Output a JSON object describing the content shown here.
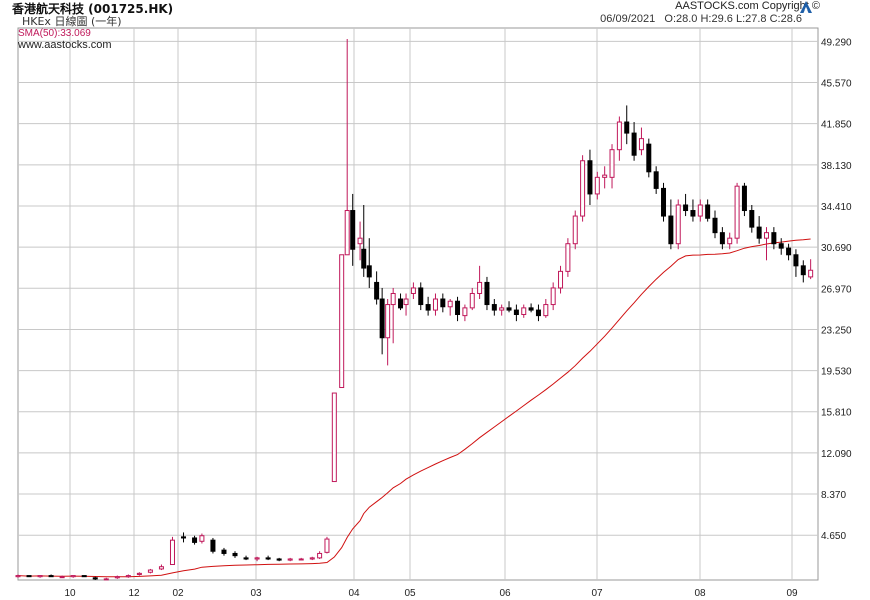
{
  "header": {
    "title": "香港航天科技 (001725.HK)",
    "subtitle": "HKEx  日線圖 (一年)",
    "copyright": "AASTOCKS.com Copyright ©",
    "date": "06/09/2021",
    "ohlc_text": "O:28.0  H:29.6  L:27.8  C:28.6"
  },
  "legend": {
    "sma_label": "SMA(50):33.069",
    "website": "www.aastocks.com"
  },
  "colors": {
    "up": "#c0185a",
    "down": "#000000",
    "sma": "#d01010",
    "grid": "#c8c8c8",
    "tick": "#222222"
  },
  "chart_data": {
    "type": "candlestick",
    "title": "香港航天科技 (001725.HK)",
    "y_ticks": [
      "49.290",
      "45.570",
      "41.850",
      "38.130",
      "34.410",
      "30.690",
      "26.970",
      "23.250",
      "19.530",
      "15.810",
      "12.090",
      "8.370",
      "4.650"
    ],
    "x_ticks": [
      "10",
      "12",
      "02",
      "03",
      "04",
      "05",
      "06",
      "07",
      "08",
      "09"
    ],
    "ylim": [
      0,
      50
    ],
    "grid": true,
    "sma": {
      "name": "SMA(50)",
      "last": 33.069
    },
    "candles": [
      [
        0,
        0.9,
        1.1,
        0.8,
        1.0
      ],
      [
        6,
        1.0,
        1.0,
        0.9,
        0.9
      ],
      [
        12,
        0.9,
        1.0,
        0.8,
        1.0
      ],
      [
        18,
        1.0,
        1.1,
        0.9,
        0.9
      ],
      [
        24,
        0.9,
        1.0,
        0.8,
        0.9
      ],
      [
        30,
        0.9,
        1.0,
        0.8,
        1.0
      ],
      [
        36,
        1.0,
        1.0,
        0.9,
        0.9
      ],
      [
        42,
        0.8,
        0.9,
        0.6,
        0.7
      ],
      [
        48,
        0.7,
        0.8,
        0.6,
        0.7
      ],
      [
        54,
        0.8,
        1.0,
        0.7,
        0.9
      ],
      [
        60,
        0.9,
        1.1,
        0.8,
        1.0
      ],
      [
        66,
        1.1,
        1.3,
        1.0,
        1.2
      ],
      [
        72,
        1.3,
        1.6,
        1.2,
        1.5
      ],
      [
        78,
        1.6,
        2.0,
        1.5,
        1.8
      ],
      [
        84,
        2.0,
        4.5,
        2.0,
        4.2
      ],
      [
        90,
        4.5,
        4.9,
        4.0,
        4.4
      ],
      [
        96,
        4.4,
        4.6,
        3.8,
        4.0
      ],
      [
        100,
        4.1,
        4.8,
        3.9,
        4.6
      ],
      [
        106,
        4.2,
        4.4,
        3.0,
        3.2
      ],
      [
        112,
        3.3,
        3.5,
        2.8,
        3.0
      ],
      [
        118,
        3.0,
        3.2,
        2.6,
        2.8
      ],
      [
        124,
        2.6,
        2.8,
        2.4,
        2.5
      ],
      [
        130,
        2.5,
        2.7,
        2.3,
        2.6
      ],
      [
        136,
        2.6,
        2.8,
        2.4,
        2.5
      ],
      [
        142,
        2.5,
        2.6,
        2.3,
        2.4
      ],
      [
        148,
        2.4,
        2.6,
        2.3,
        2.5
      ],
      [
        154,
        2.5,
        2.6,
        2.4,
        2.5
      ],
      [
        160,
        2.5,
        2.7,
        2.4,
        2.6
      ],
      [
        164,
        2.6,
        3.2,
        2.5,
        3.0
      ],
      [
        168,
        3.1,
        4.5,
        3.0,
        4.3
      ],
      [
        172,
        9.5,
        17.5,
        9.5,
        17.5
      ],
      [
        176,
        18.0,
        30.0,
        18.0,
        30.0
      ],
      [
        179,
        30.0,
        49.5,
        30.0,
        34.0
      ],
      [
        182,
        34.0,
        35.5,
        29.0,
        30.5
      ],
      [
        186,
        31.0,
        33.0,
        29.5,
        31.5
      ],
      [
        188,
        30.5,
        34.5,
        28.0,
        28.8
      ],
      [
        191,
        29.0,
        31.5,
        27.0,
        28.0
      ],
      [
        195,
        27.5,
        28.5,
        25.5,
        26.0
      ],
      [
        198,
        26.0,
        27.0,
        21.0,
        22.5
      ],
      [
        201,
        22.5,
        26.0,
        20.0,
        25.5
      ],
      [
        204,
        25.5,
        27.0,
        22.0,
        26.5
      ],
      [
        208,
        26.0,
        26.5,
        25.0,
        25.2
      ],
      [
        211,
        25.5,
        26.5,
        24.5,
        26.0
      ],
      [
        215,
        26.5,
        27.5,
        26.0,
        27.0
      ],
      [
        219,
        27.0,
        27.5,
        25.0,
        25.5
      ],
      [
        223,
        25.5,
        26.2,
        24.5,
        25.0
      ],
      [
        227,
        25.0,
        26.5,
        24.5,
        26.0
      ],
      [
        231,
        26.0,
        26.5,
        24.8,
        25.3
      ],
      [
        235,
        25.3,
        26.0,
        24.5,
        25.8
      ],
      [
        239,
        25.8,
        26.2,
        24.0,
        24.6
      ],
      [
        243,
        24.5,
        25.5,
        24.0,
        25.2
      ],
      [
        247,
        25.2,
        27.0,
        25.0,
        26.5
      ],
      [
        251,
        26.5,
        29.0,
        26.0,
        27.5
      ],
      [
        255,
        27.5,
        28.0,
        25.0,
        25.5
      ],
      [
        259,
        25.5,
        26.0,
        24.5,
        25.0
      ],
      [
        263,
        25.0,
        25.5,
        24.5,
        25.2
      ],
      [
        267,
        25.2,
        25.8,
        24.8,
        25.0
      ],
      [
        271,
        25.0,
        25.5,
        24.0,
        24.6
      ],
      [
        275,
        24.6,
        25.5,
        24.3,
        25.2
      ],
      [
        279,
        25.2,
        25.6,
        24.8,
        25.0
      ],
      [
        283,
        25.0,
        25.5,
        24.0,
        24.5
      ],
      [
        287,
        24.5,
        26.0,
        24.3,
        25.5
      ],
      [
        291,
        25.5,
        27.5,
        25.0,
        27.0
      ],
      [
        295,
        27.0,
        29.0,
        26.5,
        28.5
      ],
      [
        299,
        28.5,
        31.5,
        28.0,
        31.0
      ],
      [
        303,
        31.0,
        34.0,
        30.5,
        33.5
      ],
      [
        307,
        33.5,
        39.0,
        33.0,
        38.5
      ],
      [
        311,
        38.5,
        39.5,
        34.5,
        35.5
      ],
      [
        315,
        35.5,
        37.5,
        35.0,
        37.0
      ],
      [
        319,
        37.0,
        38.0,
        36.0,
        37.2
      ],
      [
        323,
        37.0,
        40.0,
        36.0,
        39.5
      ],
      [
        327,
        39.5,
        42.5,
        38.5,
        42.0
      ],
      [
        331,
        42.0,
        43.5,
        40.0,
        41.0
      ],
      [
        335,
        41.0,
        42.0,
        38.5,
        39.0
      ],
      [
        339,
        39.5,
        41.5,
        39.0,
        40.5
      ],
      [
        343,
        40.0,
        40.5,
        37.0,
        37.5
      ],
      [
        347,
        37.5,
        38.0,
        35.5,
        36.0
      ],
      [
        351,
        36.0,
        36.5,
        33.0,
        33.5
      ],
      [
        355,
        33.5,
        35.0,
        30.5,
        31.0
      ],
      [
        359,
        31.0,
        35.0,
        30.5,
        34.5
      ],
      [
        363,
        34.5,
        35.5,
        33.5,
        34.0
      ],
      [
        367,
        34.0,
        35.0,
        33.0,
        33.5
      ],
      [
        371,
        33.5,
        35.0,
        33.0,
        34.5
      ],
      [
        375,
        34.5,
        35.0,
        33.0,
        33.3
      ],
      [
        379,
        33.3,
        34.0,
        31.5,
        32.0
      ],
      [
        383,
        32.0,
        32.5,
        30.5,
        31.0
      ],
      [
        387,
        31.0,
        32.0,
        30.5,
        31.5
      ],
      [
        391,
        31.5,
        36.5,
        31.0,
        36.2
      ],
      [
        395,
        36.2,
        36.5,
        33.5,
        34.0
      ],
      [
        399,
        34.0,
        34.5,
        32.0,
        32.5
      ],
      [
        403,
        32.5,
        33.5,
        31.0,
        31.5
      ],
      [
        407,
        31.5,
        32.5,
        29.5,
        32.0
      ],
      [
        411,
        32.0,
        32.5,
        30.5,
        31.0
      ],
      [
        415,
        31.0,
        31.5,
        30.0,
        30.6
      ],
      [
        419,
        30.6,
        31.0,
        29.5,
        30.0
      ],
      [
        423,
        30.0,
        30.5,
        28.0,
        29.0
      ],
      [
        427,
        29.0,
        29.5,
        27.5,
        28.2
      ],
      [
        431,
        28.0,
        29.6,
        27.8,
        28.6
      ]
    ]
  }
}
